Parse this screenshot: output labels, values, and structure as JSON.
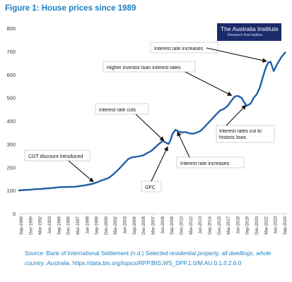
{
  "figure": {
    "title": "Figure 1: House prices since 1989",
    "logo": {
      "name": "The Australia Institute",
      "tagline": "Research that matters."
    },
    "source": {
      "prefix": "Source: Bank of International Settlement (n.d.) ",
      "italic": "Selected residential property, all dwellings, whole country: Australia",
      "suffix": ", https://data.bis.org/topics/RPP/BIS,WS_DPP,1.0/M.AU.0.1.0.2.6.0"
    }
  },
  "chart_data": {
    "type": "line",
    "title": "House prices since 1989",
    "xlabel": "",
    "ylabel": "",
    "ylim": [
      0,
      800
    ],
    "yticks": [
      0,
      100,
      200,
      300,
      400,
      500,
      600,
      700,
      800
    ],
    "grid": false,
    "line_color": "#1f5fa8",
    "x_ticks": [
      "Sep-1989",
      "Dec-1990",
      "Mar-1992",
      "Jun-1993",
      "Sep-1994",
      "Dec-1995",
      "Mar-1997",
      "Jun-1998",
      "Sep-1999",
      "Dec-2000",
      "Mar-2002",
      "Jun-2003",
      "Sep-2004",
      "Dec-2005",
      "Mar-2007",
      "Jun-2008",
      "Sep-2009",
      "Dec-2010",
      "Mar-2012",
      "Jun-2013",
      "Sep-2014",
      "Dec-2015",
      "Mar-2017",
      "Jun-2018",
      "Sep-2019",
      "Dec-2020",
      "Mar-2022",
      "Jun-2023",
      "Sep-2024"
    ],
    "series": [
      {
        "x": [
          1989.75,
          1990.5,
          1991.25,
          1992.0,
          1992.5,
          1993.0,
          1994.0,
          1995.0,
          1996.0,
          1997.0,
          1997.5,
          1998.5,
          1999.5,
          2000.0,
          2000.5,
          2001.0,
          2001.5,
          2002.0,
          2002.5,
          2003.0,
          2003.5,
          2004.0,
          2004.5,
          2005.0,
          2005.5,
          2006.0,
          2006.5,
          2007.0,
          2007.5,
          2008.0,
          2008.5,
          2008.9,
          2009.25,
          2009.5,
          2009.8,
          2010.2,
          2010.5,
          2011.0,
          2011.5,
          2012.0,
          2012.5,
          2013.0,
          2013.5,
          2014.0,
          2014.5,
          2015.0,
          2015.5,
          2016.0,
          2016.5,
          2017.0,
          2017.5,
          2017.9,
          2018.3,
          2018.8,
          2019.2,
          2019.5,
          2020.0,
          2020.4,
          2020.8,
          2021.2,
          2021.6,
          2022.0,
          2022.3,
          2022.6,
          2023.0,
          2023.5,
          2024.0,
          2024.5
        ],
        "values": [
          100,
          102,
          103,
          106,
          106,
          108,
          110,
          114,
          115,
          116,
          118,
          123,
          130,
          136,
          143,
          148,
          155,
          168,
          183,
          200,
          218,
          235,
          243,
          245,
          248,
          252,
          262,
          270,
          285,
          300,
          314,
          307,
          300,
          315,
          345,
          362,
          355,
          350,
          352,
          346,
          345,
          350,
          358,
          375,
          393,
          410,
          428,
          445,
          452,
          465,
          488,
          505,
          508,
          500,
          478,
          465,
          475,
          500,
          515,
          545,
          590,
          632,
          652,
          655,
          615,
          648,
          675,
          695
        ]
      }
    ],
    "annotations": [
      {
        "label": "CGT discount introduced",
        "x": 1999.7,
        "y": 130
      },
      {
        "label": "Interest rate cuts",
        "x": 2008.9,
        "y": 307
      },
      {
        "label": "GFC",
        "x": 2009.3,
        "y": 298
      },
      {
        "label": "Interest rate increases",
        "x": 2010.3,
        "y": 362
      },
      {
        "label": "Higher investor loan interest rates",
        "x": 2017.8,
        "y": 505
      },
      {
        "label": "Interest rates cut to historic lows",
        "x": 2019.6,
        "y": 475
      },
      {
        "label": "Interest rate increases",
        "x": 2022.4,
        "y": 655
      }
    ]
  }
}
